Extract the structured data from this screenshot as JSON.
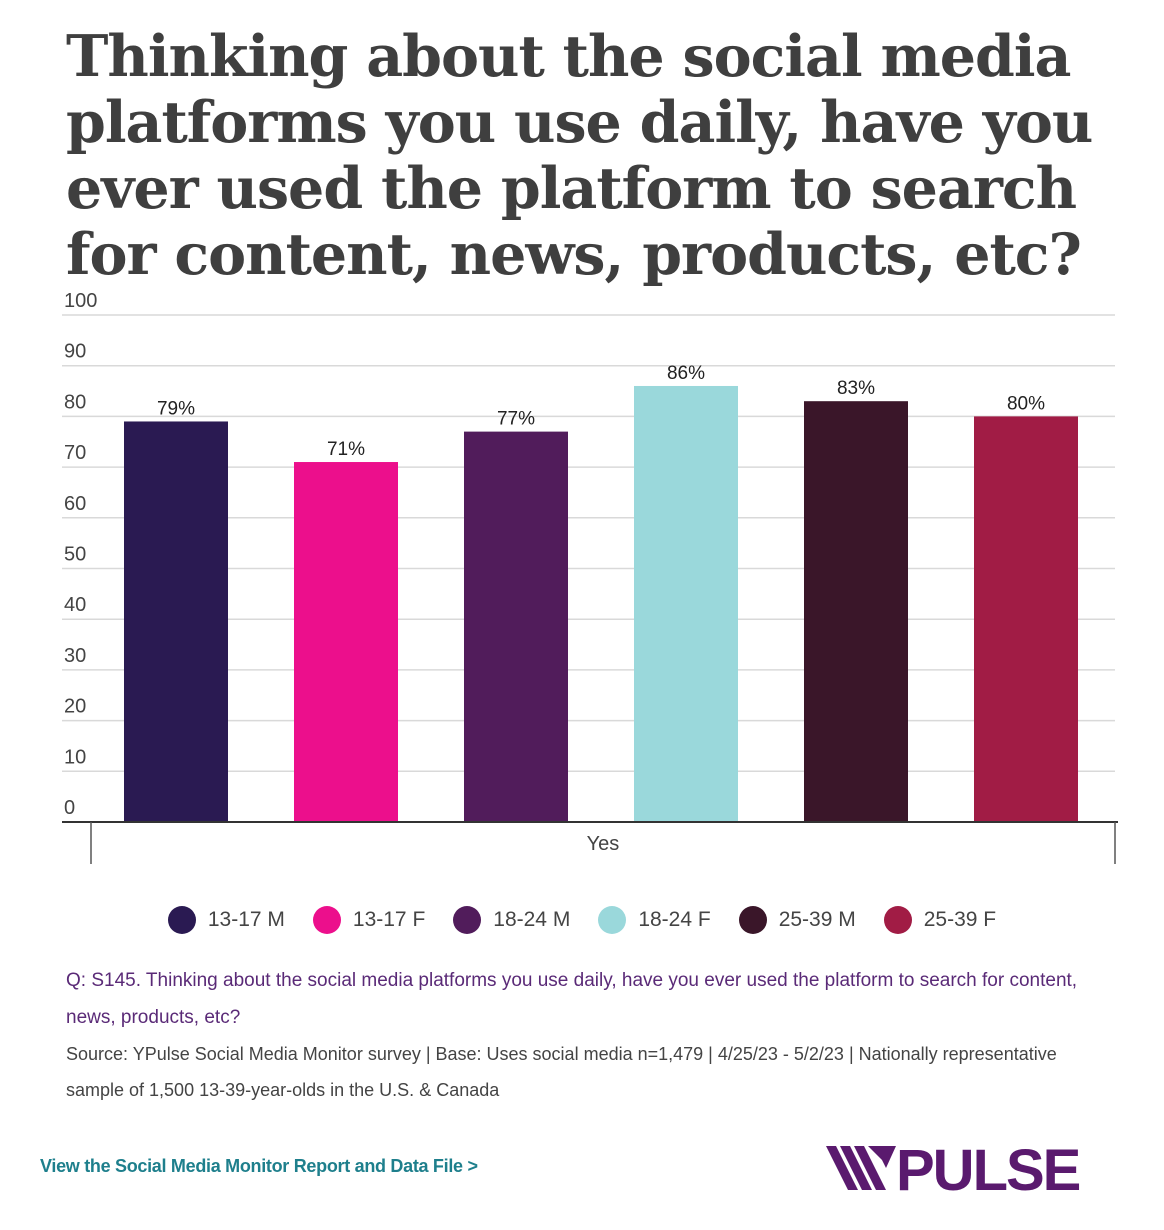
{
  "title": "Thinking about the social media platforms you use daily, have you ever used the platform to search for content, news, products, etc?",
  "chart_data": {
    "type": "bar",
    "categories": [
      "Yes"
    ],
    "series": [
      {
        "name": "13-17 M",
        "values": [
          79
        ],
        "label": "79%",
        "color": "#2a1a52"
      },
      {
        "name": "13-17 F",
        "values": [
          71
        ],
        "label": "71%",
        "color": "#ec0f8c"
      },
      {
        "name": "18-24 M",
        "values": [
          77
        ],
        "label": "77%",
        "color": "#511c5b"
      },
      {
        "name": "18-24 F",
        "values": [
          86
        ],
        "label": "86%",
        "color": "#9ad8db"
      },
      {
        "name": "25-39 M",
        "values": [
          83
        ],
        "label": "83%",
        "color": "#3a1629"
      },
      {
        "name": "25-39 F",
        "values": [
          80
        ],
        "label": "80%",
        "color": "#a11c45"
      }
    ],
    "ylim": [
      0,
      100
    ],
    "yticks": [
      0,
      10,
      20,
      30,
      40,
      50,
      60,
      70,
      80,
      90,
      100
    ],
    "xlabel": "",
    "ylabel": "",
    "grid": true,
    "legend_position": "bottom"
  },
  "footnote": {
    "question": "Q: S145. Thinking about the social media platforms you use daily, have you ever used the platform to search for content, news, products, etc?",
    "source": "Source: YPulse Social Media Monitor survey | Base: Uses social media n=1,479 | 4/25/23 - 5/2/23 | Nationally representative sample of 1,500 13-39-year-olds in the U.S. & Canada"
  },
  "link_text": "View the Social Media Monitor Report and Data File >",
  "logo": {
    "text": "YPULSE",
    "color": "#5a1a6e"
  }
}
